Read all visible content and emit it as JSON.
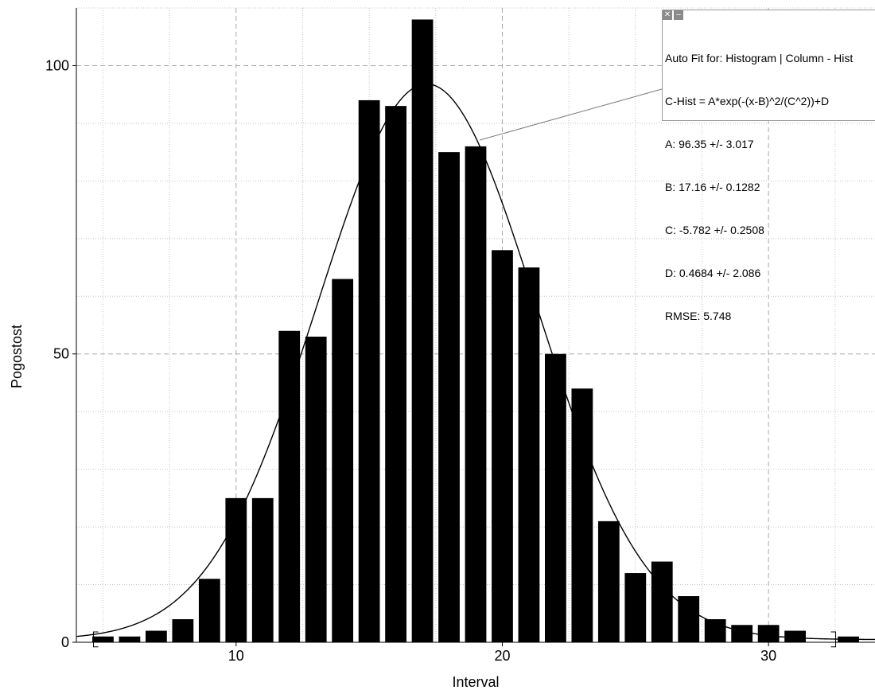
{
  "fit_box": {
    "close_glyph": "✕",
    "minimize_glyph": "–",
    "lines": [
      "Auto Fit for: Histogram | Column - Hist",
      "C-Hist = A*exp(-(x-B)^2/(C^2))+D",
      "A: 96.35 +/- 3.017",
      "B: 17.16 +/- 0.1282",
      "C: -5.782 +/- 0.2508",
      "D: 0.4684 +/- 2.086",
      "RMSE: 5.748"
    ]
  },
  "chart_data": {
    "type": "bar",
    "title": "",
    "xlabel": "Interval",
    "ylabel": "Pogostost",
    "xlim": [
      4.0,
      34.0
    ],
    "ylim": [
      0,
      110
    ],
    "x_ticks": [
      10,
      20,
      30
    ],
    "y_ticks": [
      0,
      50,
      100
    ],
    "x_minor_step": 2.5,
    "y_minor_step": 10,
    "grid": true,
    "bar_width": 0.8,
    "series": [
      {
        "values": [
          {
            "x": 5,
            "y": 1
          },
          {
            "x": 6,
            "y": 1
          },
          {
            "x": 7,
            "y": 2
          },
          {
            "x": 8,
            "y": 4
          },
          {
            "x": 9,
            "y": 11
          },
          {
            "x": 10,
            "y": 25
          },
          {
            "x": 11,
            "y": 25
          },
          {
            "x": 12,
            "y": 54
          },
          {
            "x": 13,
            "y": 53
          },
          {
            "x": 14,
            "y": 63
          },
          {
            "x": 15,
            "y": 94
          },
          {
            "x": 16,
            "y": 93
          },
          {
            "x": 17,
            "y": 108
          },
          {
            "x": 18,
            "y": 85
          },
          {
            "x": 19,
            "y": 86
          },
          {
            "x": 20,
            "y": 68
          },
          {
            "x": 21,
            "y": 65
          },
          {
            "x": 22,
            "y": 50
          },
          {
            "x": 23,
            "y": 44
          },
          {
            "x": 24,
            "y": 21
          },
          {
            "x": 25,
            "y": 12
          },
          {
            "x": 26,
            "y": 14
          },
          {
            "x": 27,
            "y": 8
          },
          {
            "x": 28,
            "y": 4
          },
          {
            "x": 29,
            "y": 3
          },
          {
            "x": 30,
            "y": 3
          },
          {
            "x": 31,
            "y": 2
          },
          {
            "x": 33,
            "y": 1
          }
        ]
      }
    ],
    "fit": {
      "model": "C-Hist = A*exp(-(x-B)^2/(C^2))+D",
      "A": 96.35,
      "B": 17.16,
      "C": -5.782,
      "D": 0.4684,
      "x_range": [
        4.0,
        34.0
      ]
    },
    "range_brackets": {
      "x_start": 5,
      "x_end": 33
    }
  }
}
